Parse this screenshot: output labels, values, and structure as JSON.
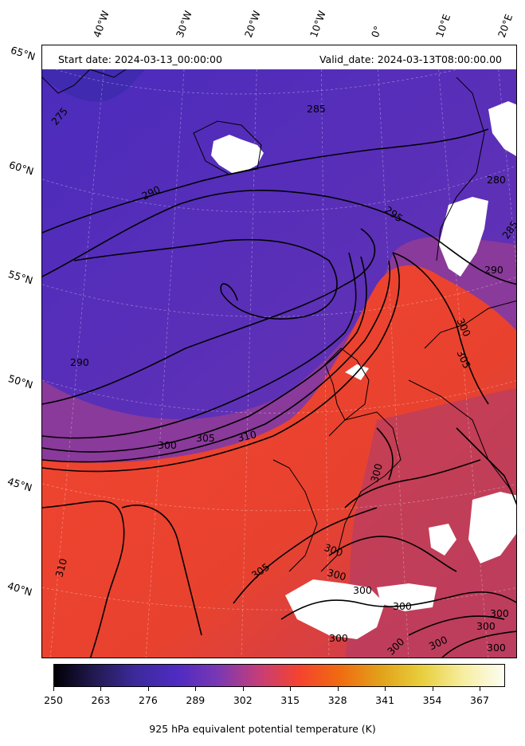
{
  "header": {
    "start_date": "Start date: 2024-03-13_00:00:00",
    "valid_date": "Valid_date: 2024-03-13T08:00:00.00"
  },
  "lat_labels": [
    "65°N",
    "60°N",
    "55°N",
    "50°N",
    "45°N",
    "40°N"
  ],
  "lon_labels": [
    "40°W",
    "30°W",
    "20°W",
    "10°W",
    "0°",
    "10°E",
    "20°E"
  ],
  "contour_labels": {
    "c275": "275",
    "c280": "280",
    "c285a": "285",
    "c285b": "285",
    "c290a": "290",
    "c290b": "290",
    "c290c": "290",
    "c295": "295",
    "c300a": "300",
    "c300b": "300",
    "c300c": "300",
    "c300d": "300",
    "c300e": "300",
    "c300f": "300",
    "c300g": "300",
    "c300h": "300",
    "c300i": "300",
    "c300j": "300",
    "c300k": "300",
    "c300l": "300",
    "c300m": "300",
    "c305a": "305",
    "c305b": "305",
    "c305c": "305",
    "c310a": "310",
    "c310b": "310"
  },
  "colorbar": {
    "title": "925 hPa equivalent potential temperature (K)",
    "ticks": [
      "250",
      "263",
      "276",
      "289",
      "302",
      "315",
      "328",
      "341",
      "354",
      "367"
    ],
    "colormap": [
      "#000004",
      "#231a52",
      "#3d2a9c",
      "#4e2bc2",
      "#7a38b3",
      "#c53e78",
      "#f5432e",
      "#f06c10",
      "#e2a21a",
      "#e8cf3d",
      "#f6eea0",
      "#fcfdf2"
    ]
  },
  "colors": {
    "cold": "#4e2bc0",
    "mid": "#7b3aa6",
    "warm": "#f5432e",
    "contour": "#000000",
    "missing": "#ffffff"
  }
}
